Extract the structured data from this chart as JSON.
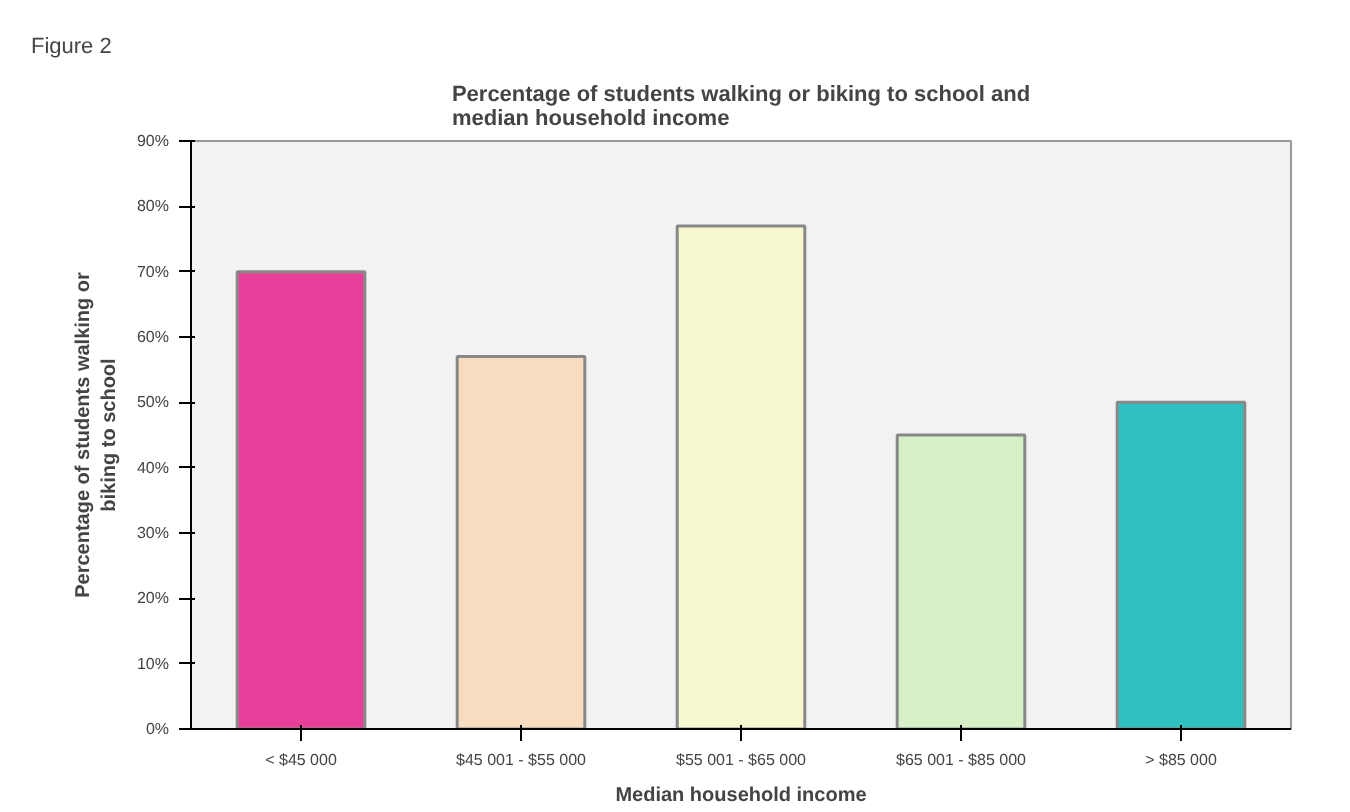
{
  "chart_data": {
    "type": "bar",
    "title": "Percentage of students walking or biking to school and median household income",
    "xlabel": "Median household income",
    "ylabel": "Percentage of students walking or\nbiking to school",
    "annotations": [
      "Figure 2"
    ],
    "categories": [
      "< $45 000",
      "$45 001 - $55 000",
      "$55 001 - $65 000",
      "$65 001 - $85 000",
      "> $85 000"
    ],
    "values": [
      70,
      57,
      77,
      45,
      50
    ],
    "colors": [
      "#e8409a",
      "#f8dcc0",
      "#f8f8d0",
      "#d8f0c8",
      "#30c0c0"
    ],
    "ylim": [
      0,
      90
    ],
    "yticks": [
      {
        "value": 0,
        "label": "0%"
      },
      {
        "value": 10,
        "label": "10%"
      },
      {
        "value": 20,
        "label": "20%"
      },
      {
        "value": 30,
        "label": "30%"
      },
      {
        "value": 40,
        "label": "40%"
      },
      {
        "value": 50,
        "label": "50%"
      },
      {
        "value": 60,
        "label": "60%"
      },
      {
        "value": 70,
        "label": "70%"
      },
      {
        "value": 80,
        "label": "80%"
      },
      {
        "value": 90,
        "label": "90%"
      }
    ],
    "grid": false
  }
}
